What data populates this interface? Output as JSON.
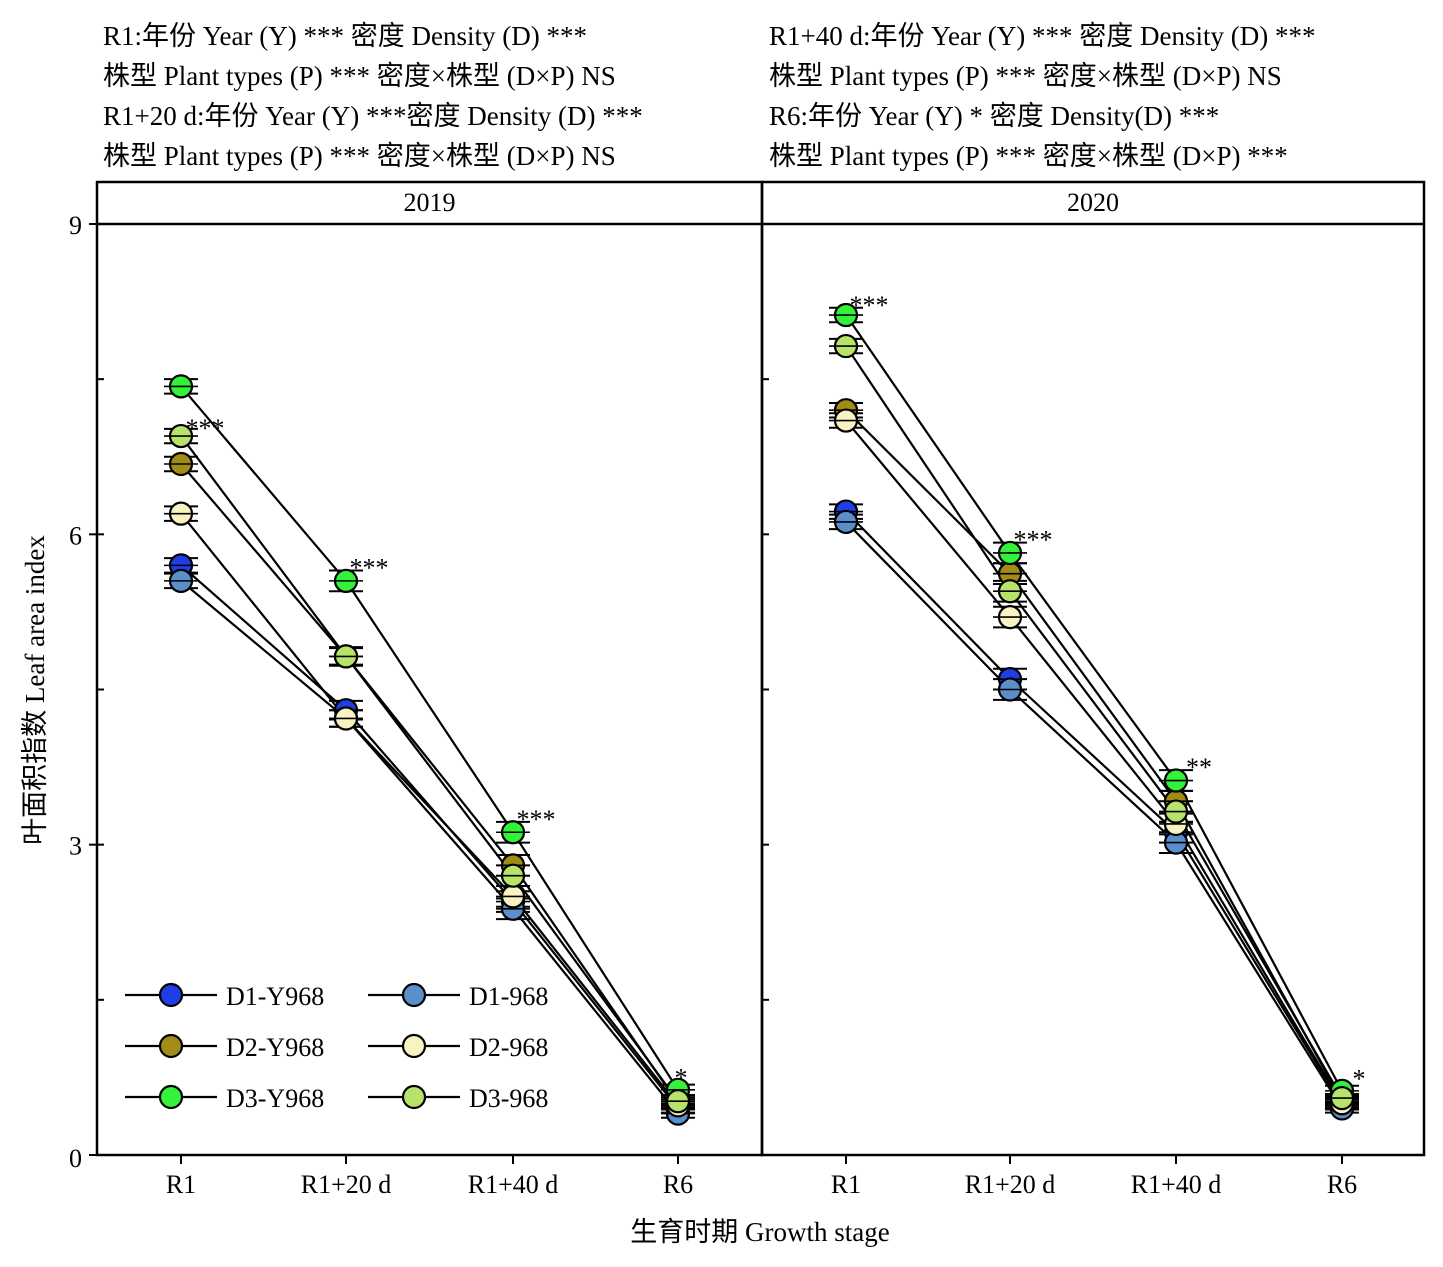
{
  "header": {
    "left": [
      "R1:年份 Year (Y) *** 密度 Density (D) ***",
      "株型 Plant types (P) *** 密度×株型 (D×P) NS",
      "R1+20 d:年份 Year (Y) ***密度 Density (D) ***",
      "株型 Plant types (P) *** 密度×株型 (D×P) NS"
    ],
    "right": [
      "R1+40 d:年份 Year (Y) *** 密度 Density (D) ***",
      "株型 Plant types (P) *** 密度×株型 (D×P) NS",
      "R6:年份 Year (Y) * 密度 Density(D) ***",
      "株型 Plant types (P) *** 密度×株型 (D×P) ***"
    ]
  },
  "chart_data": {
    "type": "line",
    "xlabel": "生育时期 Growth stage",
    "ylabel": "叶面积指数 Leaf area index",
    "ylim": [
      0,
      9
    ],
    "yticks": [
      "0",
      "3",
      "6",
      "9"
    ],
    "categories": [
      "R1",
      "R1+20 d",
      "R1+40 d",
      "R6"
    ],
    "legend": {
      "placement": "bottom-left",
      "columns": 2
    },
    "series_style": [
      {
        "name": "D1-Y968",
        "color": "#1f3ee6"
      },
      {
        "name": "D1-968",
        "color": "#5b8fcb"
      },
      {
        "name": "D2-Y968",
        "color": "#a08c16"
      },
      {
        "name": "D2-968",
        "color": "#fbf2c4"
      },
      {
        "name": "D3-Y968",
        "color": "#32f23a"
      },
      {
        "name": "D3-968",
        "color": "#b8e36a"
      }
    ],
    "panels": [
      {
        "title": "2019",
        "significance": [
          "***",
          "***",
          "***",
          "*"
        ],
        "series": [
          {
            "name": "D1-Y968",
            "values": [
              5.7,
              4.3,
              2.45,
              0.45
            ],
            "errors": [
              0.07,
              0.09,
              0.1,
              0.04
            ]
          },
          {
            "name": "D1-968",
            "values": [
              5.55,
              4.22,
              2.38,
              0.4
            ],
            "errors": [
              0.07,
              0.08,
              0.1,
              0.04
            ]
          },
          {
            "name": "D2-Y968",
            "values": [
              6.68,
              4.82,
              2.8,
              0.5
            ],
            "errors": [
              0.07,
              0.08,
              0.1,
              0.04
            ]
          },
          {
            "name": "D2-968",
            "values": [
              6.2,
              4.22,
              2.5,
              0.48
            ],
            "errors": [
              0.07,
              0.08,
              0.1,
              0.04
            ]
          },
          {
            "name": "D3-Y968",
            "values": [
              7.43,
              5.55,
              3.12,
              0.63
            ],
            "errors": [
              0.07,
              0.1,
              0.1,
              0.05
            ]
          },
          {
            "name": "D3-968",
            "values": [
              6.95,
              4.82,
              2.7,
              0.52
            ],
            "errors": [
              0.07,
              0.09,
              0.1,
              0.04
            ]
          }
        ]
      },
      {
        "title": "2020",
        "significance": [
          "***",
          "***",
          "**",
          "*"
        ],
        "series": [
          {
            "name": "D1-Y968",
            "values": [
              6.22,
              4.6,
              3.12,
              0.48
            ],
            "errors": [
              0.07,
              0.1,
              0.1,
              0.04
            ]
          },
          {
            "name": "D1-968",
            "values": [
              6.12,
              4.5,
              3.02,
              0.45
            ],
            "errors": [
              0.07,
              0.1,
              0.1,
              0.04
            ]
          },
          {
            "name": "D2-Y968",
            "values": [
              7.2,
              5.62,
              3.42,
              0.52
            ],
            "errors": [
              0.07,
              0.1,
              0.1,
              0.04
            ]
          },
          {
            "name": "D2-968",
            "values": [
              7.1,
              5.2,
              3.2,
              0.5
            ],
            "errors": [
              0.07,
              0.1,
              0.1,
              0.04
            ]
          },
          {
            "name": "D3-Y968",
            "values": [
              8.12,
              5.82,
              3.62,
              0.62
            ],
            "errors": [
              0.07,
              0.1,
              0.1,
              0.05
            ]
          },
          {
            "name": "D3-968",
            "values": [
              7.82,
              5.45,
              3.32,
              0.55
            ],
            "errors": [
              0.07,
              0.1,
              0.1,
              0.04
            ]
          }
        ]
      }
    ]
  }
}
